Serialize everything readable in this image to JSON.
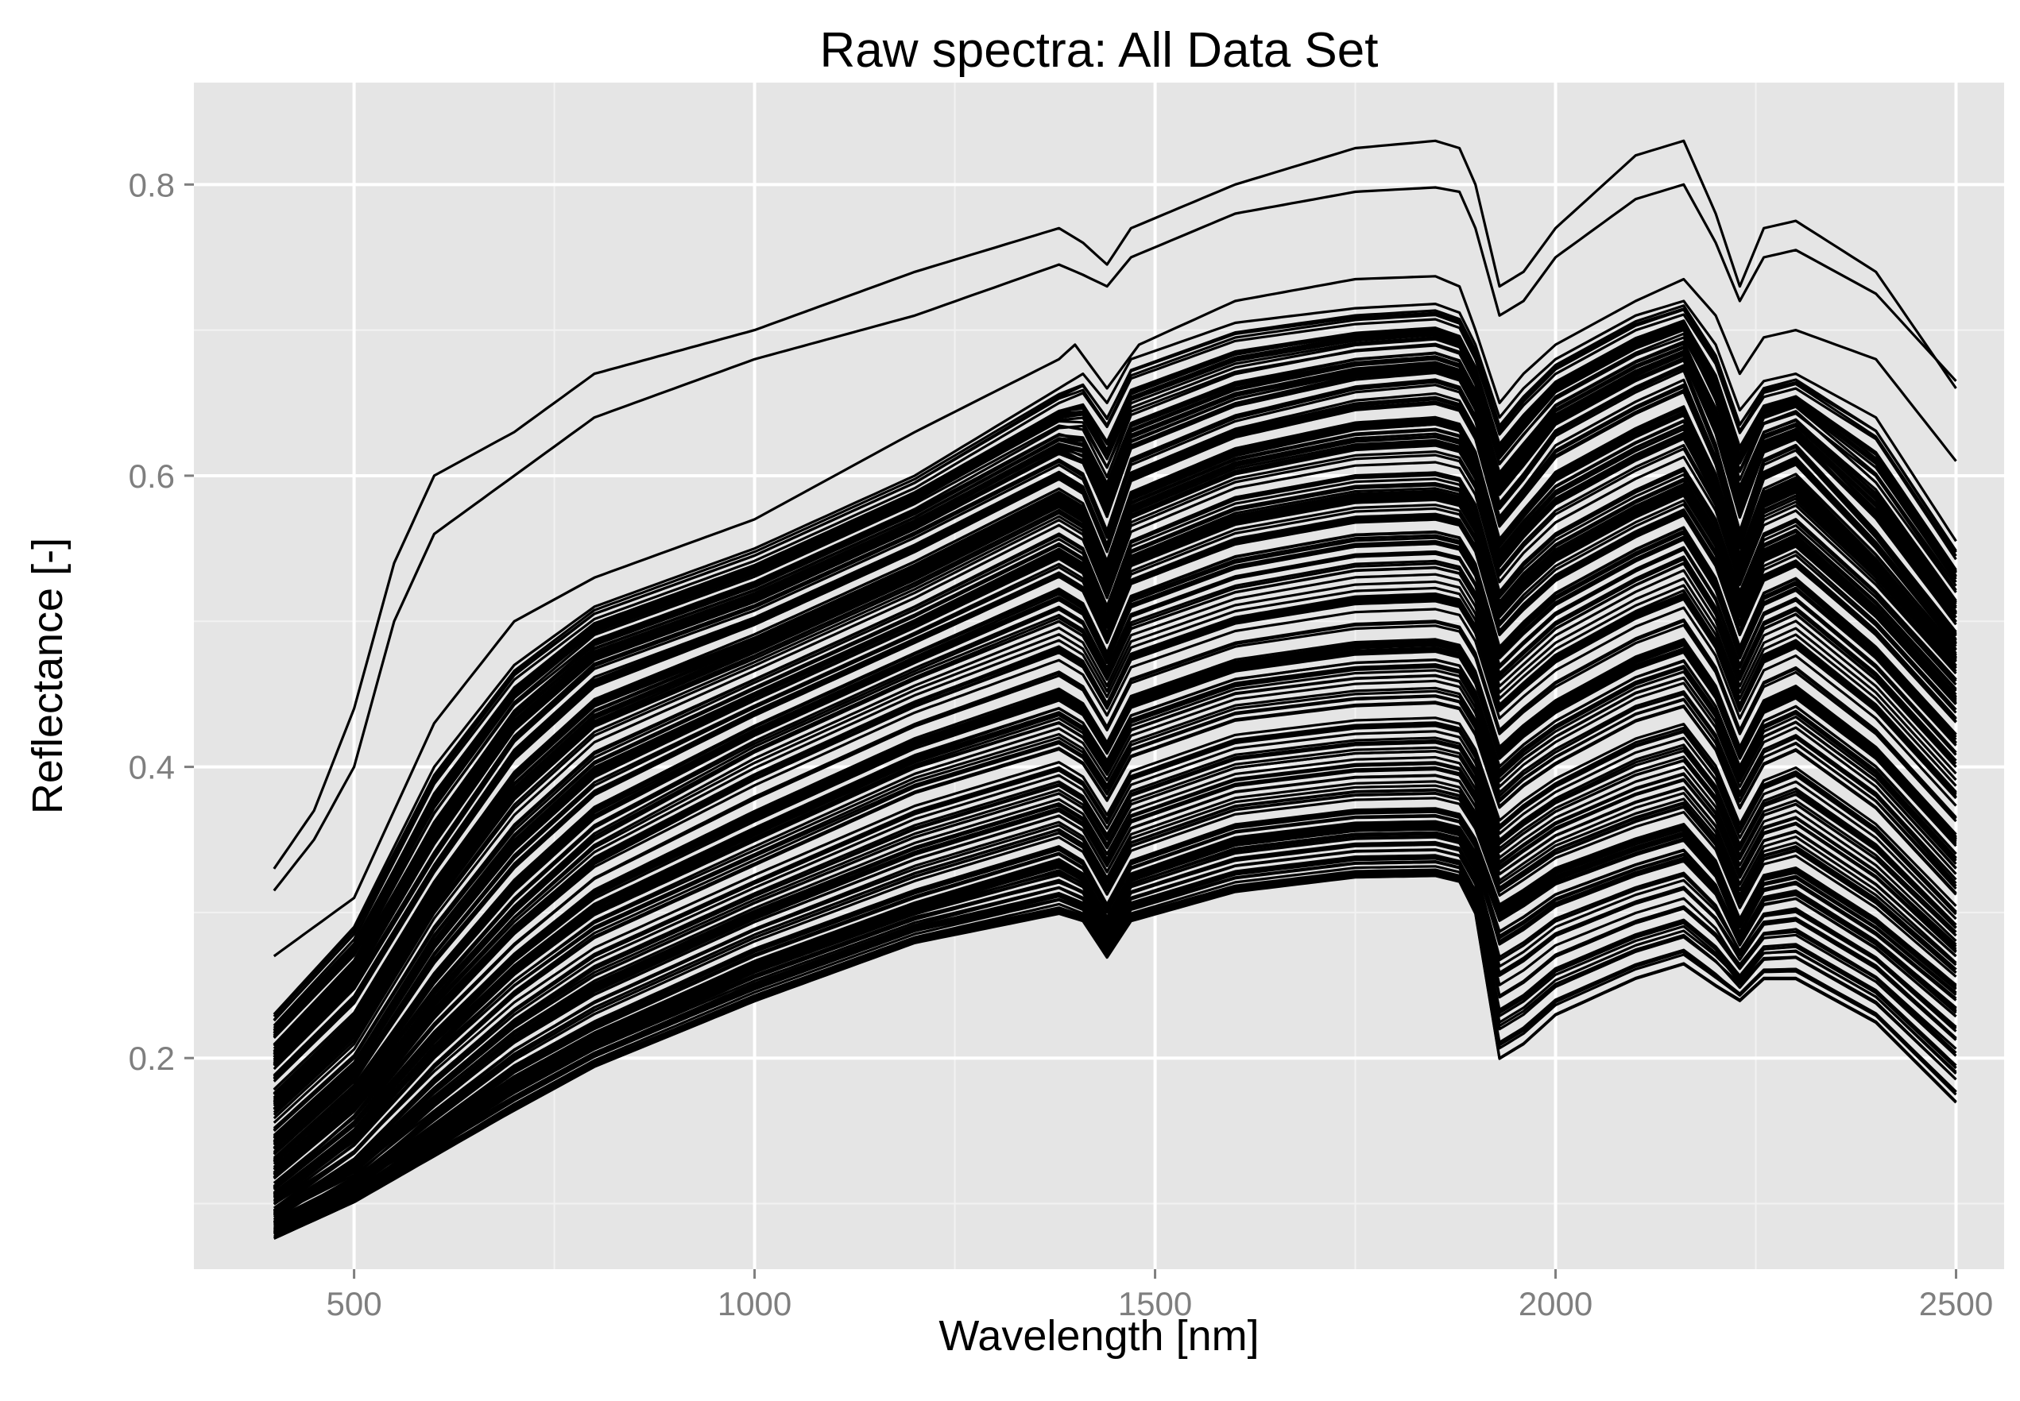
{
  "chart_data": {
    "type": "line",
    "title": "Raw spectra: All Data Set",
    "xlabel": "Wavelength [nm]",
    "ylabel": "Reflectance [-]",
    "xlim": [
      300,
      2560
    ],
    "ylim": [
      0.055,
      0.87
    ],
    "x_ticks": [
      500,
      1000,
      1500,
      2000,
      2500
    ],
    "x_tick_labels": [
      "500",
      "1000",
      "1500",
      "2000",
      "2500"
    ],
    "y_ticks": [
      0.2,
      0.4,
      0.6,
      0.8
    ],
    "y_tick_labels": [
      "0.2",
      "0.4",
      "0.6",
      "0.8"
    ],
    "grid": true,
    "legend": "none",
    "colors": {
      "panel_background": "#e5e5e5",
      "grid_major": "#ffffff",
      "line": "#000000",
      "tick_label": "#7f7f7f",
      "text": "#000000"
    },
    "x_range": [
      400,
      2500
    ],
    "series_count": 300,
    "representative_series": [
      {
        "x": [
          400,
          450,
          500,
          550,
          600,
          700,
          800,
          1000,
          1200,
          1380,
          1410,
          1440,
          1470,
          1600,
          1750,
          1850,
          1880,
          1900,
          1930,
          1960,
          2000,
          2100,
          2160,
          2200,
          2230,
          2260,
          2300,
          2400,
          2500
        ],
        "y": [
          0.33,
          0.37,
          0.44,
          0.54,
          0.6,
          0.63,
          0.67,
          0.7,
          0.74,
          0.77,
          0.76,
          0.745,
          0.77,
          0.8,
          0.825,
          0.83,
          0.825,
          0.8,
          0.73,
          0.74,
          0.77,
          0.82,
          0.83,
          0.78,
          0.73,
          0.77,
          0.775,
          0.74,
          0.66
        ]
      },
      {
        "x": [
          400,
          450,
          500,
          550,
          600,
          700,
          800,
          1000,
          1200,
          1380,
          1410,
          1440,
          1470,
          1600,
          1750,
          1850,
          1880,
          1900,
          1930,
          1960,
          2000,
          2100,
          2160,
          2200,
          2230,
          2260,
          2300,
          2400,
          2500
        ],
        "y": [
          0.315,
          0.35,
          0.4,
          0.5,
          0.56,
          0.6,
          0.64,
          0.68,
          0.71,
          0.745,
          0.738,
          0.73,
          0.75,
          0.78,
          0.795,
          0.798,
          0.795,
          0.77,
          0.71,
          0.72,
          0.75,
          0.79,
          0.8,
          0.76,
          0.72,
          0.75,
          0.755,
          0.725,
          0.665
        ]
      },
      {
        "x": [
          400,
          500,
          600,
          700,
          800,
          1000,
          1200,
          1380,
          1400,
          1440,
          1480,
          1600,
          1750,
          1850,
          1880,
          1900,
          1930,
          1960,
          2000,
          2100,
          2160,
          2200,
          2230,
          2260,
          2300,
          2400,
          2500
        ],
        "y": [
          0.27,
          0.31,
          0.43,
          0.5,
          0.53,
          0.57,
          0.63,
          0.68,
          0.69,
          0.66,
          0.69,
          0.72,
          0.735,
          0.737,
          0.73,
          0.7,
          0.65,
          0.67,
          0.69,
          0.72,
          0.735,
          0.71,
          0.67,
          0.695,
          0.7,
          0.68,
          0.61
        ]
      },
      {
        "x": [
          400,
          500,
          600,
          700,
          800,
          1000,
          1200,
          1380,
          1410,
          1440,
          1470,
          1600,
          1750,
          1850,
          1880,
          1900,
          1930,
          1960,
          2000,
          2100,
          2160,
          2200,
          2230,
          2260,
          2300,
          2400,
          2500
        ],
        "y": [
          0.23,
          0.29,
          0.4,
          0.47,
          0.51,
          0.55,
          0.6,
          0.66,
          0.67,
          0.65,
          0.68,
          0.705,
          0.715,
          0.718,
          0.712,
          0.69,
          0.64,
          0.66,
          0.68,
          0.71,
          0.72,
          0.69,
          0.645,
          0.665,
          0.67,
          0.64,
          0.555
        ]
      },
      {
        "x": [
          400,
          500,
          600,
          700,
          800,
          1000,
          1200,
          1380,
          1410,
          1440,
          1470,
          1600,
          1750,
          1850,
          1880,
          1900,
          1930,
          1960,
          2000,
          2100,
          2160,
          2200,
          2230,
          2260,
          2300,
          2400,
          2500
        ],
        "y": [
          0.195,
          0.25,
          0.34,
          0.42,
          0.47,
          0.51,
          0.56,
          0.61,
          0.6,
          0.56,
          0.61,
          0.64,
          0.66,
          0.665,
          0.66,
          0.64,
          0.58,
          0.6,
          0.63,
          0.66,
          0.675,
          0.62,
          0.56,
          0.61,
          0.62,
          0.56,
          0.49
        ]
      },
      {
        "x": [
          400,
          500,
          600,
          700,
          800,
          1000,
          1200,
          1380,
          1410,
          1440,
          1470,
          1600,
          1750,
          1850,
          1880,
          1900,
          1930,
          1960,
          2000,
          2100,
          2160,
          2200,
          2230,
          2260,
          2300,
          2400,
          2500
        ],
        "y": [
          0.15,
          0.2,
          0.29,
          0.36,
          0.41,
          0.46,
          0.51,
          0.56,
          0.55,
          0.51,
          0.555,
          0.585,
          0.6,
          0.602,
          0.598,
          0.58,
          0.52,
          0.54,
          0.56,
          0.59,
          0.605,
          0.57,
          0.52,
          0.56,
          0.57,
          0.52,
          0.46
        ]
      },
      {
        "x": [
          400,
          500,
          600,
          700,
          800,
          1000,
          1200,
          1380,
          1410,
          1440,
          1470,
          1600,
          1750,
          1850,
          1880,
          1900,
          1930,
          1960,
          2000,
          2100,
          2160,
          2200,
          2230,
          2260,
          2300,
          2400,
          2500
        ],
        "y": [
          0.12,
          0.17,
          0.24,
          0.3,
          0.35,
          0.41,
          0.46,
          0.5,
          0.49,
          0.46,
          0.495,
          0.52,
          0.535,
          0.537,
          0.533,
          0.515,
          0.46,
          0.475,
          0.495,
          0.525,
          0.54,
          0.505,
          0.46,
          0.495,
          0.505,
          0.46,
          0.4
        ]
      },
      {
        "x": [
          400,
          500,
          600,
          700,
          800,
          1000,
          1200,
          1380,
          1410,
          1440,
          1470,
          1600,
          1750,
          1850,
          1880,
          1900,
          1930,
          1960,
          2000,
          2100,
          2160,
          2200,
          2230,
          2260,
          2300,
          2400,
          2500
        ],
        "y": [
          0.1,
          0.14,
          0.2,
          0.25,
          0.29,
          0.34,
          0.39,
          0.42,
          0.41,
          0.385,
          0.415,
          0.44,
          0.45,
          0.452,
          0.448,
          0.43,
          0.38,
          0.395,
          0.41,
          0.44,
          0.45,
          0.42,
          0.38,
          0.41,
          0.42,
          0.38,
          0.32
        ]
      },
      {
        "x": [
          400,
          500,
          600,
          700,
          800,
          1000,
          1200,
          1380,
          1410,
          1440,
          1470,
          1600,
          1750,
          1850,
          1880,
          1900,
          1930,
          1960,
          2000,
          2100,
          2160,
          2200,
          2230,
          2260,
          2300,
          2400,
          2500
        ],
        "y": [
          0.085,
          0.11,
          0.15,
          0.19,
          0.22,
          0.27,
          0.31,
          0.34,
          0.33,
          0.3,
          0.33,
          0.355,
          0.365,
          0.366,
          0.362,
          0.345,
          0.3,
          0.31,
          0.325,
          0.345,
          0.355,
          0.33,
          0.29,
          0.32,
          0.325,
          0.29,
          0.245
        ]
      },
      {
        "x": [
          400,
          500,
          600,
          700,
          800,
          1000,
          1200,
          1380,
          1410,
          1440,
          1470,
          1600,
          1750,
          1850,
          1880,
          1900,
          1930,
          1960,
          2000,
          2100,
          2160,
          2200,
          2230,
          2260,
          2300,
          2400,
          2500
        ],
        "y": [
          0.08,
          0.105,
          0.135,
          0.165,
          0.195,
          0.24,
          0.28,
          0.3,
          0.295,
          0.27,
          0.295,
          0.315,
          0.325,
          0.326,
          0.322,
          0.3,
          0.2,
          0.21,
          0.23,
          0.255,
          0.265,
          0.25,
          0.24,
          0.255,
          0.255,
          0.225,
          0.17
        ]
      }
    ]
  }
}
